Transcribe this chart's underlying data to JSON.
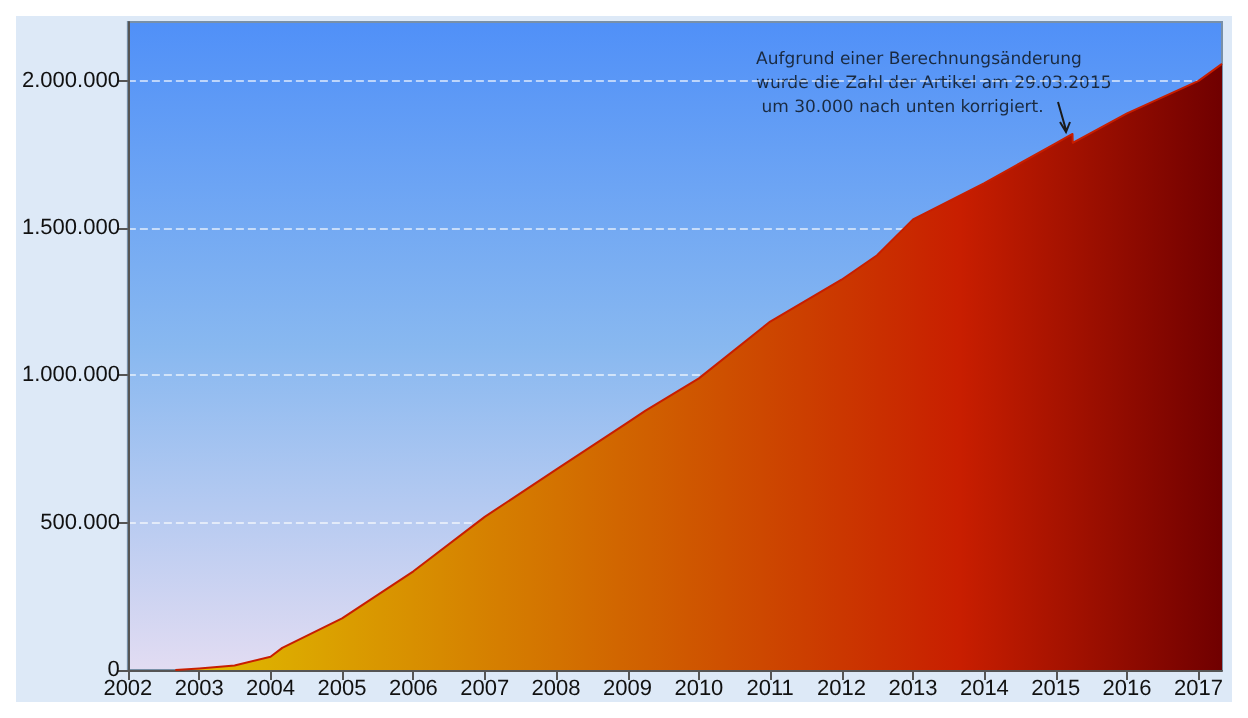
{
  "chart_data": {
    "type": "area",
    "x": [
      "2002-09",
      "2003-01",
      "2003-07",
      "2004-01",
      "2004-03",
      "2005-01",
      "2006-01",
      "2007-01",
      "2008-01",
      "2009-01",
      "2009-04",
      "2010-01",
      "2011-01",
      "2012-01",
      "2012-07",
      "2013-01",
      "2014-01",
      "2015-01",
      "2015-03-28",
      "2015-03-29",
      "2016-01",
      "2017-01",
      "2017-05"
    ],
    "series": [
      {
        "color": "#c81e00",
        "values": [
          0,
          5000,
          15000,
          45000,
          75000,
          175000,
          335000,
          520000,
          680000,
          840000,
          880000,
          990000,
          1183000,
          1325000,
          1408000,
          1530000,
          1653000,
          1788000,
          1820000,
          1790000,
          1890000,
          2000000,
          2058000
        ]
      }
    ],
    "xlim": [
      "2002",
      "2017-05"
    ],
    "xticks": [
      "2002",
      "2003",
      "2004",
      "2005",
      "2006",
      "2007",
      "2008",
      "2009",
      "2010",
      "2011",
      "2012",
      "2013",
      "2014",
      "2015",
      "2016",
      "2017"
    ],
    "ylim": [
      0,
      2200000
    ],
    "yticks": [
      {
        "value": 0,
        "label": "0"
      },
      {
        "value": 500000,
        "label": "500.000"
      },
      {
        "value": 1000000,
        "label": "1.000.000"
      },
      {
        "value": 1500000,
        "label": "1.500.000"
      },
      {
        "value": 2000000,
        "label": "2.000.000"
      }
    ],
    "grid": "y",
    "annotations": [
      "Aufgrund einer Berechnungsänderung wurde die Zahl der Artikel am 29.03.2015 um 30.000 nach unten korrigiert."
    ]
  }
}
